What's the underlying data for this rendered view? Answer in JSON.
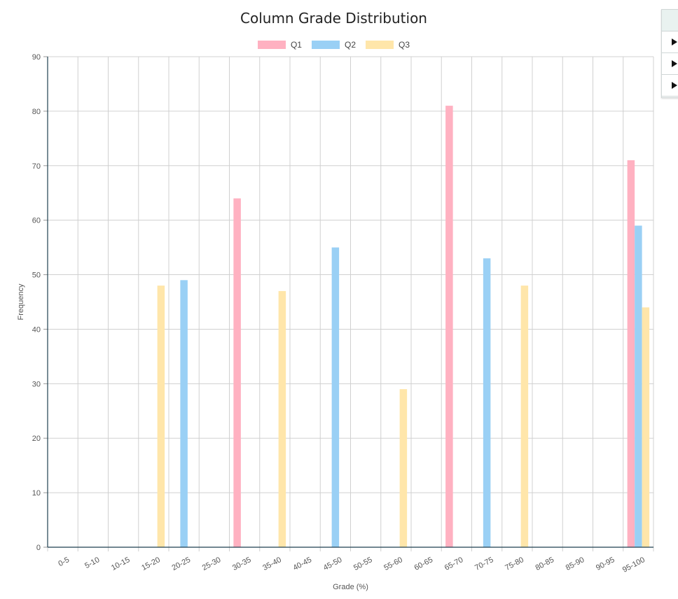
{
  "chart_data": {
    "type": "bar",
    "title": "Column Grade Distribution",
    "xlabel": "Grade (%)",
    "ylabel": "Frequency",
    "ylim": [
      0,
      90
    ],
    "yticks": [
      0,
      10,
      20,
      30,
      40,
      50,
      60,
      70,
      80,
      90
    ],
    "grid": true,
    "legend_position": "top-center",
    "categories": [
      "0-5",
      "5-10",
      "10-15",
      "15-20",
      "20-25",
      "25-30",
      "30-35",
      "35-40",
      "40-45",
      "45-50",
      "50-55",
      "55-60",
      "60-65",
      "65-70",
      "70-75",
      "75-80",
      "80-85",
      "85-90",
      "90-95",
      "95-100"
    ],
    "series": [
      {
        "name": "Q1",
        "color": "#ffb1c1",
        "values": [
          0,
          0,
          0,
          0,
          0,
          0,
          64,
          0,
          0,
          0,
          0,
          0,
          0,
          81,
          0,
          0,
          0,
          0,
          0,
          71
        ]
      },
      {
        "name": "Q2",
        "color": "#9ad0f5",
        "values": [
          0,
          0,
          0,
          0,
          49,
          0,
          0,
          0,
          0,
          55,
          0,
          0,
          0,
          0,
          53,
          0,
          0,
          0,
          0,
          59
        ]
      },
      {
        "name": "Q3",
        "color": "#ffe6aa",
        "values": [
          0,
          0,
          0,
          48,
          0,
          0,
          0,
          47,
          0,
          0,
          0,
          29,
          0,
          0,
          0,
          48,
          0,
          0,
          0,
          44
        ]
      }
    ]
  },
  "side_panel": {
    "rows": [
      "expand-arrow",
      "expand-arrow",
      "expand-arrow"
    ]
  }
}
